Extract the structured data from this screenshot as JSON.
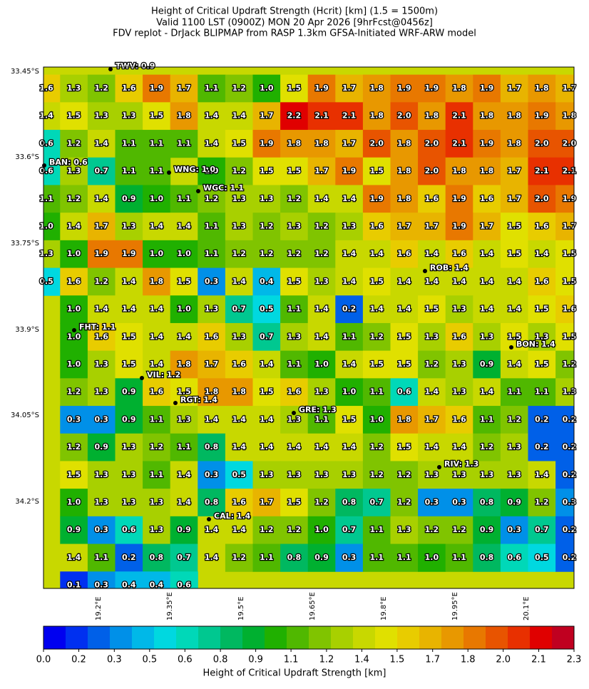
{
  "title": [
    "Height of Critical Updraft Strength (Hcrit) [km] (1.5 = 1500m)",
    "Valid 1100 LST (0900Z) MON 20 Apr 2026 [9hrFcst@0456z]",
    "FDV replot - DrJack BLIPMAP from RASP 1.3km GFSA-Initiated WRF-ARW model"
  ],
  "map": {
    "lat_labels": [
      "33.45°S",
      "33.6°S",
      "33.75°S",
      "33.9°S",
      "34.05°S",
      "34.2°S"
    ],
    "lon_labels": [
      "19.2°E",
      "19.35°E",
      "19.5°E",
      "19.65°E",
      "19.8°E",
      "19.95°E",
      "20.1°E"
    ],
    "grid": [
      [
        "1.6",
        "1.3",
        "1.2",
        "1.6",
        "1.9",
        "1.7",
        "1.1",
        "1.2",
        "1.0",
        "1.5",
        "1.9",
        "1.7",
        "1.8",
        "1.9",
        "1.9",
        "1.8",
        "1.9",
        "1.7",
        "1.8",
        "1.7"
      ],
      [
        "1.4",
        "1.5",
        "1.3",
        "1.3",
        "1.5",
        "1.8",
        "1.4",
        "1.4",
        "1.7",
        "2.2",
        "2.1",
        "2.1",
        "1.8",
        "2.0",
        "1.8",
        "2.1",
        "1.8",
        "1.8",
        "1.9",
        "1.8"
      ],
      [
        "0.6",
        "1.2",
        "1.4",
        "1.1",
        "1.1",
        "1.1",
        "1.4",
        "1.5",
        "1.9",
        "1.8",
        "1.8",
        "1.7",
        "2.0",
        "1.8",
        "2.0",
        "2.1",
        "1.9",
        "1.8",
        "2.0",
        "2.0"
      ],
      [
        "0.6",
        "1.3",
        "0.7",
        "1.1",
        "1.1",
        null,
        "1.0",
        "1.2",
        "1.5",
        "1.5",
        "1.7",
        "1.9",
        "1.5",
        "1.8",
        "2.0",
        "1.8",
        "1.8",
        "1.7",
        "2.1",
        "2.1"
      ],
      [
        "1.1",
        "1.2",
        "1.4",
        "0.9",
        "1.0",
        "1.1",
        "1.2",
        "1.3",
        "1.3",
        "1.2",
        "1.4",
        "1.4",
        "1.9",
        "1.8",
        "1.6",
        "1.9",
        "1.6",
        "1.7",
        "2.0",
        "1.9"
      ],
      [
        "1.0",
        "1.4",
        "1.7",
        "1.3",
        "1.4",
        "1.4",
        "1.1",
        "1.3",
        "1.2",
        "1.3",
        "1.2",
        "1.3",
        "1.6",
        "1.7",
        "1.7",
        "1.9",
        "1.7",
        "1.5",
        "1.6",
        "1.7"
      ],
      [
        "1.3",
        "1.0",
        "1.9",
        "1.9",
        "1.0",
        "1.0",
        "1.1",
        "1.2",
        "1.2",
        "1.2",
        "1.2",
        "1.4",
        "1.4",
        "1.6",
        "1.4",
        "1.6",
        "1.4",
        "1.5",
        "1.4",
        "1.5"
      ],
      [
        "0.5",
        "1.6",
        "1.2",
        "1.4",
        "1.8",
        "1.5",
        "0.3",
        "1.4",
        "0.4",
        "1.5",
        "1.3",
        "1.4",
        "1.5",
        "1.4",
        "1.4",
        "1.4",
        "1.4",
        "1.4",
        "1.6",
        "1.5"
      ],
      [
        null,
        "1.0",
        "1.4",
        "1.4",
        "1.4",
        "1.0",
        "1.3",
        "0.7",
        "0.5",
        "1.1",
        "1.4",
        "0.2",
        "1.4",
        "1.4",
        "1.5",
        "1.3",
        "1.4",
        "1.4",
        "1.5",
        "1.6"
      ],
      [
        null,
        "1.0",
        "1.6",
        "1.5",
        "1.4",
        "1.4",
        "1.6",
        "1.3",
        "0.7",
        "1.3",
        "1.4",
        "1.1",
        "1.2",
        "1.5",
        "1.3",
        "1.6",
        "1.3",
        "1.5",
        "1.3",
        "1.5"
      ],
      [
        null,
        "1.0",
        "1.3",
        "1.5",
        "1.4",
        "1.8",
        "1.7",
        "1.6",
        "1.4",
        "1.1",
        "1.0",
        "1.4",
        "1.5",
        "1.5",
        "1.2",
        "1.3",
        "0.9",
        "1.4",
        "1.5",
        "1.2"
      ],
      [
        null,
        "1.2",
        "1.3",
        "0.9",
        "1.6",
        "1.5",
        "1.8",
        "1.8",
        "1.5",
        "1.6",
        "1.3",
        "1.0",
        "1.1",
        "0.6",
        "1.4",
        "1.3",
        "1.4",
        "1.1",
        "1.1",
        "1.3"
      ],
      [
        null,
        "0.3",
        "0.3",
        "0.9",
        "1.1",
        "1.3",
        "1.4",
        "1.4",
        "1.4",
        "1.3",
        "1.1",
        "1.5",
        "1.0",
        "1.8",
        "1.7",
        "1.6",
        "1.1",
        "1.2",
        "0.2",
        "0.2"
      ],
      [
        null,
        "1.2",
        "0.9",
        "1.3",
        "1.2",
        "1.1",
        "0.8",
        "1.4",
        "1.4",
        "1.4",
        "1.4",
        "1.4",
        "1.2",
        "1.5",
        "1.4",
        "1.4",
        "1.2",
        "1.3",
        "0.2",
        "0.2"
      ],
      [
        null,
        "1.5",
        "1.3",
        "1.3",
        "1.1",
        "1.4",
        "0.3",
        "0.5",
        "1.3",
        "1.3",
        "1.3",
        "1.3",
        "1.2",
        "1.2",
        "1.3",
        "1.3",
        "1.3",
        "1.3",
        "1.4",
        "0.2"
      ],
      [
        null,
        "1.0",
        "1.3",
        "1.3",
        "1.3",
        "1.4",
        "0.8",
        "1.6",
        "1.7",
        "1.5",
        "1.2",
        "0.8",
        "0.7",
        "1.2",
        "0.3",
        "0.3",
        "0.8",
        "0.9",
        "1.2",
        "0.3"
      ],
      [
        null,
        "0.9",
        "0.3",
        "0.6",
        "1.3",
        "0.9",
        "1.4",
        "1.4",
        "1.2",
        "1.2",
        "1.0",
        "0.7",
        "1.1",
        "1.3",
        "1.2",
        "1.2",
        "0.9",
        "0.3",
        "0.7",
        "0.2"
      ],
      [
        null,
        "1.4",
        "1.1",
        "0.2",
        "0.8",
        "0.7",
        "1.4",
        "1.2",
        "1.1",
        "0.8",
        "0.9",
        "0.3",
        "1.1",
        "1.1",
        "1.0",
        "1.1",
        "0.8",
        "0.6",
        "0.5",
        "0.2"
      ],
      [
        null,
        "0.1",
        "0.3",
        "0.4",
        "0.4",
        "0.6",
        null,
        null,
        null,
        null,
        null,
        null,
        null,
        null,
        null,
        null,
        null,
        null,
        null,
        null
      ]
    ],
    "stations": [
      "TWV: 0.9",
      "BAN: 0.6",
      "WNG: 1.0",
      "WGC: 1.1",
      "ROB: 1.4",
      "FHT: 1.1",
      "BON: 1.4",
      "VIL: 1.2",
      "RGT: 1.4",
      "GRE: 1.3",
      "RIV: 1.3",
      "CAL: 1.4"
    ]
  },
  "colorbar": {
    "label": "Height of Critical Updraft Strength [km]",
    "clim": [
      0,
      2.3
    ],
    "colors": [
      "#0000f0",
      "#0030f0",
      "#0060e8",
      "#0090e8",
      "#00b8e8",
      "#00d8e0",
      "#00d8b8",
      "#00c890",
      "#00b860",
      "#00b030",
      "#20b000",
      "#50b800",
      "#80c400",
      "#a8d000",
      "#c8d800",
      "#e0e000",
      "#e8cc00",
      "#e8b400",
      "#e89800",
      "#e87800",
      "#e85400",
      "#e83000",
      "#e00000",
      "#c00020"
    ],
    "ticks": [
      {
        "value": 0,
        "label": "0.0"
      },
      {
        "value": 0.153,
        "label": "0.2"
      },
      {
        "value": 0.307,
        "label": "0.3"
      },
      {
        "value": 0.46,
        "label": "0.5"
      },
      {
        "value": 0.613,
        "label": "0.6"
      },
      {
        "value": 0.767,
        "label": "0.8"
      },
      {
        "value": 0.92,
        "label": "0.9"
      },
      {
        "value": 1.073,
        "label": "1.1"
      },
      {
        "value": 1.227,
        "label": "1.2"
      },
      {
        "value": 1.38,
        "label": "1.4"
      },
      {
        "value": 1.533,
        "label": "1.5"
      },
      {
        "value": 1.687,
        "label": "1.7"
      },
      {
        "value": 1.84,
        "label": "1.8"
      },
      {
        "value": 1.993,
        "label": "2.0"
      },
      {
        "value": 2.147,
        "label": "2.1"
      },
      {
        "value": 2.3,
        "label": "2.3"
      }
    ]
  }
}
